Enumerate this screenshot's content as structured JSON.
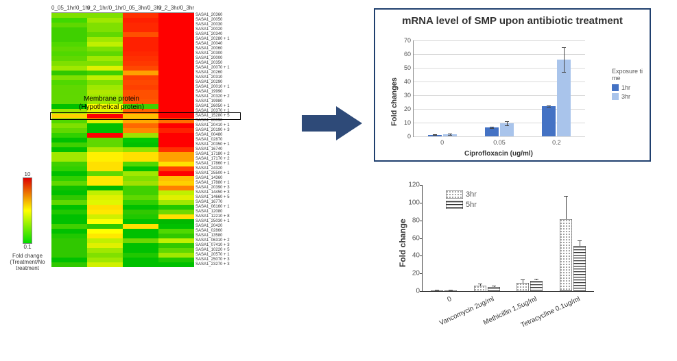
{
  "heatmap": {
    "columns": [
      "0_05_1hr/0_1hr",
      "0_2_1hr/0_1hr",
      "0_05_3hr/0_3hr",
      "0_2_3hr/0_3hr"
    ],
    "highlight_label": "Membrane protein\n(Hypothetical protein)",
    "highlight_row_index": 21,
    "rows": [
      {
        "label": "SASA1_20360",
        "cells": [
          "#7fe000",
          "#7fe000",
          "#ff3000",
          "#ff0000"
        ]
      },
      {
        "label": "SASA1_20050",
        "cells": [
          "#3fd800",
          "#a0e800",
          "#ff2000",
          "#ff0000"
        ]
      },
      {
        "label": "SASA1_20030",
        "cells": [
          "#5fd800",
          "#80e000",
          "#ff2800",
          "#ff0000"
        ]
      },
      {
        "label": "SASA1_20020",
        "cells": [
          "#3fd000",
          "#7fe000",
          "#ff2800",
          "#ff0000"
        ]
      },
      {
        "label": "SASA1_20340",
        "cells": [
          "#3fd000",
          "#60d800",
          "#ff5000",
          "#ff0000"
        ]
      },
      {
        "label": "SASA1_20280 + 1",
        "cells": [
          "#3fd000",
          "#a0e800",
          "#ff2000",
          "#ff0000"
        ]
      },
      {
        "label": "SASA1_20040",
        "cells": [
          "#50d800",
          "#c0f000",
          "#ff2000",
          "#ff0000"
        ]
      },
      {
        "label": "SASA1_20060",
        "cells": [
          "#60d800",
          "#7fe000",
          "#ff2000",
          "#ff0000"
        ]
      },
      {
        "label": "SASA1_20300",
        "cells": [
          "#50d800",
          "#5fd800",
          "#ff2800",
          "#ff0000"
        ]
      },
      {
        "label": "SASA1_20000",
        "cells": [
          "#60d800",
          "#a0e800",
          "#ff3000",
          "#ff0000"
        ]
      },
      {
        "label": "SASA1_20350",
        "cells": [
          "#7fe000",
          "#7fe000",
          "#ff3800",
          "#ff0000"
        ]
      },
      {
        "label": "SASA1_20070 + 1",
        "cells": [
          "#a0e800",
          "#e0f000",
          "#ff4800",
          "#ff0000"
        ]
      },
      {
        "label": "SASA1_20260",
        "cells": [
          "#30c800",
          "#3fd000",
          "#ffa000",
          "#ff0000"
        ]
      },
      {
        "label": "SASA1_20310",
        "cells": [
          "#7fe000",
          "#c0f000",
          "#ff4000",
          "#ff0000"
        ]
      },
      {
        "label": "SASA1_20290",
        "cells": [
          "#50d800",
          "#7fe000",
          "#ff4800",
          "#ff0000"
        ]
      },
      {
        "label": "SASA1_20010 + 1",
        "cells": [
          "#60d800",
          "#a0e800",
          "#ff4000",
          "#ff0000"
        ]
      },
      {
        "label": "SASA1_19990",
        "cells": [
          "#5fd800",
          "#b0e800",
          "#ff5000",
          "#ff0000"
        ]
      },
      {
        "label": "SASA1_20320 + 2",
        "cells": [
          "#60d800",
          "#a0e800",
          "#ff5000",
          "#ff0000"
        ]
      },
      {
        "label": "SASA1_19980",
        "cells": [
          "#60d800",
          "#a0e800",
          "#ff5800",
          "#ff0000"
        ]
      },
      {
        "label": "SASA1_26050 + 1",
        "cells": [
          "#00c000",
          "#ffff00",
          "#40d000",
          "#ff0000"
        ]
      },
      {
        "label": "SASA1_20370 + 1",
        "cells": [
          "#a0e800",
          "#e0f800",
          "#ff6000",
          "#ff0000"
        ]
      },
      {
        "label": "SASA1_15280 + 5",
        "cells": [
          "#ffd000",
          "#ff0000",
          "#ffc000",
          "#ff0000"
        ]
      },
      {
        "label": "SASA1_20090",
        "cells": [
          "#50d800",
          "#e0f000",
          "#ffa800",
          "#ff7000"
        ]
      },
      {
        "label": "SASA1_20410 + 1",
        "cells": [
          "#7fe000",
          "#00c000",
          "#ff6800",
          "#ff0000"
        ]
      },
      {
        "label": "SASA1_20190 + 3",
        "cells": [
          "#60d800",
          "#00c000",
          "#ff8800",
          "#ff2000"
        ]
      },
      {
        "label": "SASA1_00480",
        "cells": [
          "#30d000",
          "#ff0000",
          "#a0e000",
          "#ff0000"
        ]
      },
      {
        "label": "SASA1_02870",
        "cells": [
          "#00c000",
          "#60d800",
          "#00c800",
          "#ff0000"
        ]
      },
      {
        "label": "SASA1_20350 + 1",
        "cells": [
          "#40d000",
          "#60d800",
          "#00c000",
          "#ff0000"
        ]
      },
      {
        "label": "SASA1_16740",
        "cells": [
          "#00c000",
          "#b0e800",
          "#90e400",
          "#ff3000"
        ]
      },
      {
        "label": "SASA1_17180 + 2",
        "cells": [
          "#a0e800",
          "#fff000",
          "#ffe000",
          "#ffa000"
        ]
      },
      {
        "label": "SASA1_17170 + 2",
        "cells": [
          "#a0e800",
          "#fff000",
          "#ffe000",
          "#ffa000"
        ]
      },
      {
        "label": "SASA1_17860 + 1",
        "cells": [
          "#40d000",
          "#ffe000",
          "#50d800",
          "#ffe000"
        ]
      },
      {
        "label": "SASA1_24320",
        "cells": [
          "#30d000",
          "#ffe000",
          "#00c000",
          "#ff4000"
        ]
      },
      {
        "label": "SASA1_25500 + 1",
        "cells": [
          "#00c000",
          "#60d800",
          "#a0e800",
          "#ff0000"
        ]
      },
      {
        "label": "SASA1_14360",
        "cells": [
          "#30d000",
          "#ffe800",
          "#80e000",
          "#ffc000"
        ]
      },
      {
        "label": "SASA1_17880 + 1",
        "cells": [
          "#60d800",
          "#ffe800",
          "#a0e000",
          "#ffd000"
        ]
      },
      {
        "label": "SASA1_20390 + 3",
        "cells": [
          "#10c000",
          "#00b800",
          "#40d000",
          "#ff8000"
        ]
      },
      {
        "label": "SASA1_14450 + 3",
        "cells": [
          "#00c000",
          "#c0f000",
          "#40d000",
          "#c0f000"
        ]
      },
      {
        "label": "SASA1_14660 + 5",
        "cells": [
          "#30c800",
          "#e0f000",
          "#60d800",
          "#e0f000"
        ]
      },
      {
        "label": "SASA1_16770",
        "cells": [
          "#60d800",
          "#e0f800",
          "#30d000",
          "#a0e800"
        ]
      },
      {
        "label": "SASA1_06160 + 1",
        "cells": [
          "#00c000",
          "#ffe000",
          "#00c000",
          "#20c800"
        ]
      },
      {
        "label": "SASA1_12080",
        "cells": [
          "#20c800",
          "#ffe800",
          "#30c800",
          "#70d800"
        ]
      },
      {
        "label": "SASA1_12210 + 8",
        "cells": [
          "#00c000",
          "#d0f000",
          "#20c800",
          "#ffe000"
        ]
      },
      {
        "label": "SASA1_25030 + 1",
        "cells": [
          "#00c000",
          "#ffff00",
          "#00c000",
          "#00b800"
        ]
      },
      {
        "label": "SASA1_20420",
        "cells": [
          "#40d000",
          "#30c800",
          "#ffe000",
          "#00c000"
        ]
      },
      {
        "label": "SASA1_02860",
        "cells": [
          "#00c000",
          "#ffff00",
          "#00c000",
          "#50d800"
        ]
      },
      {
        "label": "SASA1_13580",
        "cells": [
          "#20c800",
          "#ffe800",
          "#00c000",
          "#30c800"
        ]
      },
      {
        "label": "SASA1_06310 + 2",
        "cells": [
          "#30c800",
          "#c0f000",
          "#70d800",
          "#c0f000"
        ]
      },
      {
        "label": "SASA1_07410 + 3",
        "cells": [
          "#30c800",
          "#e0f000",
          "#00c000",
          "#30c800"
        ]
      },
      {
        "label": "SASA1_10220 + 5",
        "cells": [
          "#30c800",
          "#a0e800",
          "#00c000",
          "#60d800"
        ]
      },
      {
        "label": "SASA1_20570 + 1",
        "cells": [
          "#30c800",
          "#80e000",
          "#20c800",
          "#a0e800"
        ]
      },
      {
        "label": "SASA1_25070 + 3",
        "cells": [
          "#00c000",
          "#a0e800",
          "#00c000",
          "#20c800"
        ]
      },
      {
        "label": "SASA1_23270 + 3",
        "cells": [
          "#30c800",
          "#d0f000",
          "#00c000",
          "#00c000"
        ]
      }
    ]
  },
  "colorbar": {
    "max": "10",
    "min": "0.1",
    "caption": "Fold change\n(Treatment/No treatment"
  },
  "chart_top": {
    "title": "mRNA level of SMP upon antibiotic treatment",
    "ylabel": "Fold changes",
    "xlabel": "Ciprofloxacin (ug/ml)",
    "ymax": 70,
    "ytick_step": 10,
    "categories": [
      "0",
      "0.05",
      "0.2"
    ],
    "series": [
      {
        "name": "1hr",
        "color": "#4472c4",
        "values": [
          1.2,
          6.5,
          22
        ],
        "err": [
          0.2,
          0.3,
          0.6
        ]
      },
      {
        "name": "3hr",
        "color": "#a9c4eb",
        "values": [
          1.5,
          9.5,
          56
        ],
        "err": [
          0.3,
          1.5,
          9
        ]
      }
    ],
    "legend_title": "Exposure ti\nme",
    "legend_colors": [
      "#4472c4",
      "#a9c4eb"
    ],
    "legend_labels": [
      "1hr",
      "3hr"
    ]
  },
  "chart_bottom": {
    "ylabel": "Fold change",
    "ymax": 120,
    "ytick_step": 20,
    "categories": [
      "0",
      "Vancomycin 2ug/ml",
      "Methicillin 1.5ug/ml",
      "Tetracycline 0.1ug/ml"
    ],
    "series": [
      {
        "name": "3hr",
        "pattern": "dots",
        "values": [
          1,
          6.5,
          9.5,
          81
        ],
        "err": [
          0.2,
          2,
          3.5,
          27
        ]
      },
      {
        "name": "5hr",
        "pattern": "hstripe",
        "values": [
          1,
          5,
          12,
          51
        ],
        "err": [
          0.2,
          1.2,
          1.8,
          6
        ]
      }
    ],
    "legend_labels": [
      "3hr",
      "5hr"
    ]
  }
}
